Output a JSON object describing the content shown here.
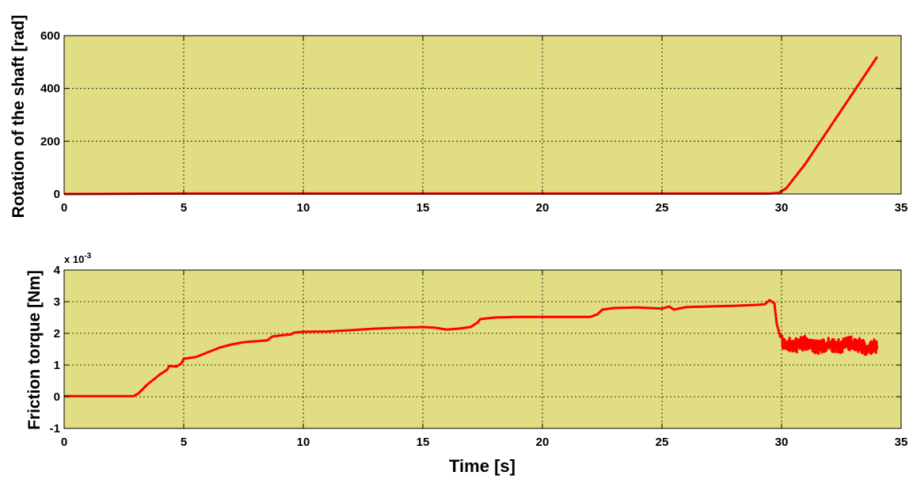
{
  "chart_data": [
    {
      "type": "line",
      "title": "",
      "xlabel": "",
      "ylabel": "Rotation of the shaft [rad]",
      "xlim": [
        0,
        35
      ],
      "ylim": [
        0,
        600
      ],
      "xticks": [
        "0",
        "5",
        "10",
        "15",
        "20",
        "25",
        "30",
        "35"
      ],
      "yticks": [
        "0",
        "200",
        "400",
        "600"
      ],
      "grid": true,
      "background_color": "#e1dd82",
      "series": [
        {
          "color": "#ff0000",
          "x": [
            0,
            3,
            5,
            10,
            15,
            20,
            25,
            29.5,
            29.9,
            30.2,
            31,
            32,
            33,
            34
          ],
          "y": [
            0,
            1,
            2,
            2,
            2,
            2,
            2,
            2,
            5,
            22,
            115,
            250,
            385,
            520
          ]
        }
      ]
    },
    {
      "type": "line",
      "title": "",
      "xlabel": "Time [s]",
      "ylabel": "Friction torque [Nm]",
      "xlim": [
        0,
        35
      ],
      "ylim": [
        -1,
        4
      ],
      "y_multiplier": "x 10",
      "y_multiplier_exponent": "-3",
      "xticks": [
        "0",
        "5",
        "10",
        "15",
        "20",
        "25",
        "30",
        "35"
      ],
      "yticks": [
        "-1",
        "0",
        "1",
        "2",
        "3",
        "4"
      ],
      "grid": true,
      "background_color": "#e1dd82",
      "series": [
        {
          "color": "#ff0000",
          "x": [
            0,
            2.9,
            3.1,
            3.5,
            4.0,
            4.3,
            4.4,
            4.7,
            4.9,
            5.0,
            5.5,
            6.0,
            6.5,
            7.0,
            7.5,
            8.0,
            8.5,
            8.7,
            9.0,
            9.5,
            9.6,
            10.0,
            11.0,
            12.0,
            13.0,
            14.0,
            15.0,
            15.5,
            16.0,
            16.5,
            17.0,
            17.3,
            17.4,
            18.0,
            19.0,
            20.0,
            21.0,
            22.0,
            22.3,
            22.5,
            23.0,
            24.0,
            25.0,
            25.3,
            25.5,
            26.0,
            27.0,
            28.0,
            29.0,
            29.3,
            29.5,
            29.7,
            29.8,
            30.0,
            30.5,
            31.0,
            31.5,
            32.0,
            32.5,
            33.0,
            33.5,
            34.0
          ],
          "y": [
            0.02,
            0.02,
            0.1,
            0.4,
            0.7,
            0.85,
            0.97,
            0.95,
            1.05,
            1.2,
            1.25,
            1.4,
            1.55,
            1.65,
            1.72,
            1.75,
            1.78,
            1.9,
            1.93,
            1.97,
            2.02,
            2.05,
            2.06,
            2.1,
            2.15,
            2.18,
            2.2,
            2.18,
            2.12,
            2.15,
            2.2,
            2.35,
            2.45,
            2.5,
            2.52,
            2.52,
            2.52,
            2.52,
            2.6,
            2.75,
            2.8,
            2.82,
            2.78,
            2.85,
            2.75,
            2.83,
            2.85,
            2.87,
            2.9,
            2.92,
            3.05,
            2.95,
            2.3,
            1.75,
            1.6,
            1.7,
            1.55,
            1.65,
            1.6,
            1.7,
            1.55,
            1.6
          ]
        }
      ]
    }
  ]
}
